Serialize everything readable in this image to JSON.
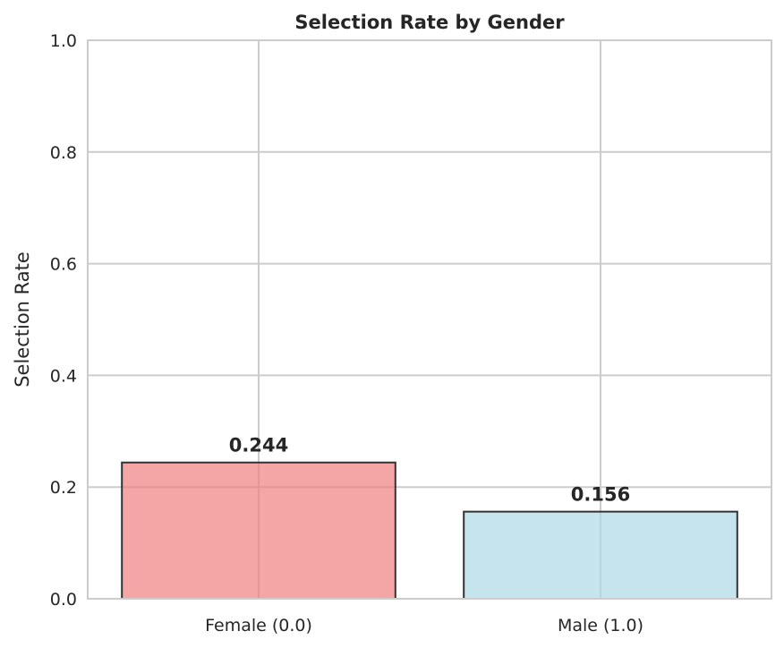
{
  "chart_data": {
    "type": "bar",
    "title": "Selection Rate by Gender",
    "xlabel": "",
    "ylabel": "Selection Rate",
    "categories": [
      "Female (0.0)",
      "Male (1.0)"
    ],
    "values": [
      0.244,
      0.156
    ],
    "value_labels": [
      "0.244",
      "0.156"
    ],
    "ylim": [
      0,
      1.0
    ],
    "yticks": [
      0.0,
      0.2,
      0.4,
      0.6,
      0.8,
      1.0
    ],
    "ytick_labels": [
      "0.0",
      "0.2",
      "0.4",
      "0.6",
      "0.8",
      "1.0"
    ],
    "grid": true,
    "colors": {
      "bars": [
        "#f08080",
        "#add8e6"
      ],
      "bar_edge": "#333333",
      "grid": "#cccccc",
      "axes_frame": "#cccccc",
      "text": "#262626"
    }
  }
}
